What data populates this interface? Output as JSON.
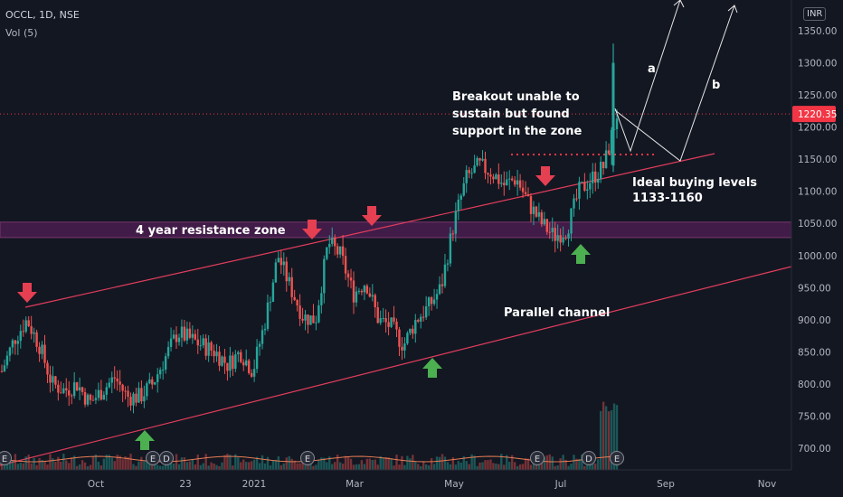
{
  "header": {
    "symbol_line": "OCCL, 1D, NSE",
    "volume_line": "Vol (5)",
    "currency": "INR"
  },
  "chart_data": {
    "type": "candlestick",
    "title": "OCCL, 1D, NSE",
    "ylim": [
      675,
      1370
    ],
    "y_ticks": [
      "1350.00",
      "1300.00",
      "1250.00",
      "1200.00",
      "1150.00",
      "1100.00",
      "1050.00",
      "1000.00",
      "950.00",
      "900.00",
      "850.00",
      "800.00",
      "750.00",
      "700.00"
    ],
    "x_ticks": [
      "Oct",
      "23",
      "2021",
      "Mar",
      "May",
      "Jul",
      "Sep",
      "Nov"
    ],
    "last_price": "1220.35",
    "series": [
      {
        "name": "price",
        "points": [
          [
            "Aug",
            820
          ],
          [
            "Sep",
            870
          ],
          [
            "Sep",
            900
          ],
          [
            "Sep",
            860
          ],
          [
            "Sep",
            800
          ],
          [
            "Sep",
            790
          ],
          [
            "Oct",
            800
          ],
          [
            "Oct",
            770
          ],
          [
            "Oct",
            790
          ],
          [
            "Nov",
            810
          ],
          [
            "Nov",
            780
          ],
          [
            "Nov",
            780
          ],
          [
            "Nov",
            800
          ],
          [
            "Dec",
            840
          ],
          [
            "Dec",
            880
          ],
          [
            "Dec",
            870
          ],
          [
            "Dec",
            860
          ],
          [
            "Jan",
            850
          ],
          [
            "Jan",
            830
          ],
          [
            "Jan",
            850
          ],
          [
            "Jan",
            820
          ],
          [
            "Feb",
            900
          ],
          [
            "Feb",
            1000
          ],
          [
            "Feb",
            950
          ],
          [
            "Feb",
            905
          ],
          [
            "Mar",
            900
          ],
          [
            "Mar",
            1020
          ],
          [
            "Mar",
            1000
          ],
          [
            "Mar",
            940
          ],
          [
            "Apr",
            960
          ],
          [
            "Apr",
            900
          ],
          [
            "Apr",
            890
          ],
          [
            "Apr",
            860
          ],
          [
            "May",
            900
          ],
          [
            "May",
            920
          ],
          [
            "May",
            950
          ],
          [
            "May",
            1050
          ],
          [
            "May",
            1120
          ],
          [
            "Jun",
            1140
          ],
          [
            "Jun",
            1130
          ],
          [
            "Jun",
            1110
          ],
          [
            "Jun",
            1120
          ],
          [
            "Jun",
            1080
          ],
          [
            "Jul",
            1050
          ],
          [
            "Jul",
            1030
          ],
          [
            "Jul",
            1040
          ],
          [
            "Jul",
            1100
          ],
          [
            "Jul",
            1120
          ],
          [
            "Jul",
            1140
          ],
          [
            "Jul",
            1220
          ]
        ]
      }
    ],
    "annotations": [
      "4 year resistance zone",
      "Breakout unable to",
      "sustain but found",
      "support in the zone",
      "Ideal buying levels",
      "1133-1160",
      "Parallel channel",
      "a",
      "b"
    ],
    "event_markers": [
      "E",
      "E",
      "D",
      "E",
      "E",
      "D",
      "E"
    ],
    "resistance_zone": [
      1028,
      1052
    ],
    "colors": {
      "background": "#131722",
      "up": "#26a69a",
      "down": "#ef5350",
      "zone": "#4a1d4f",
      "channel": "#e23d5c",
      "arrow_down": "#e53f52",
      "arrow_up": "#4caf50",
      "price_tag": "#f23645"
    }
  }
}
